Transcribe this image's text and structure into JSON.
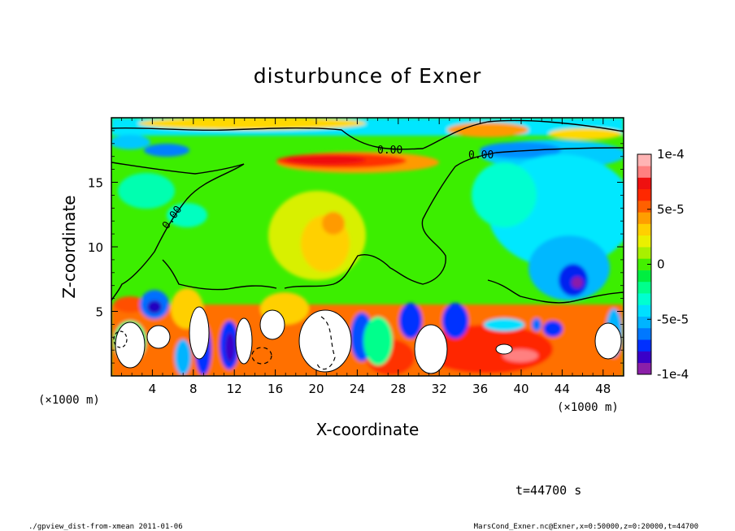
{
  "chart_data": {
    "type": "heatmap",
    "title": "disturbunce of Exner",
    "xlabel": "X-coordinate",
    "ylabel": "Z-coordinate",
    "x_unit": "(×1000 m)",
    "x_unit_right": "(×1000 m)",
    "xlim": [
      0,
      50
    ],
    "ylim": [
      0,
      20
    ],
    "x_ticks": [
      4,
      8,
      12,
      16,
      20,
      24,
      28,
      32,
      36,
      40,
      44,
      48
    ],
    "y_ticks": [
      5,
      10,
      15
    ],
    "colorbar": {
      "vmin": -0.0001,
      "vmax": 0.0001,
      "tick_values": [
        0.0001,
        5e-05,
        0,
        -5e-05,
        -0.0001
      ],
      "tick_labels": [
        "1e-4",
        "5e-5",
        "0",
        "-5e-5",
        "-1e-4"
      ],
      "colors": [
        "#8b1fa8",
        "#3a00c8",
        "#0030ff",
        "#0078ff",
        "#00b4ff",
        "#00e0ff",
        "#00ffd0",
        "#00ff8c",
        "#00ee40",
        "#44f000",
        "#a8f000",
        "#eaf000",
        "#ffd000",
        "#ff9e00",
        "#ff6000",
        "#ff2800",
        "#ef1010",
        "#ff8080",
        "#ffb4b4"
      ]
    },
    "contour_labels": [
      "0.00",
      "0.00",
      "0.00"
    ],
    "time_label": "t=44700 s"
  },
  "footer": {
    "left": "./gpview_dist-from-xmean  2011-01-06",
    "right": "MarsCond_Exner.nc@Exner,x=0:50000,z=0:20000,t=44700"
  }
}
